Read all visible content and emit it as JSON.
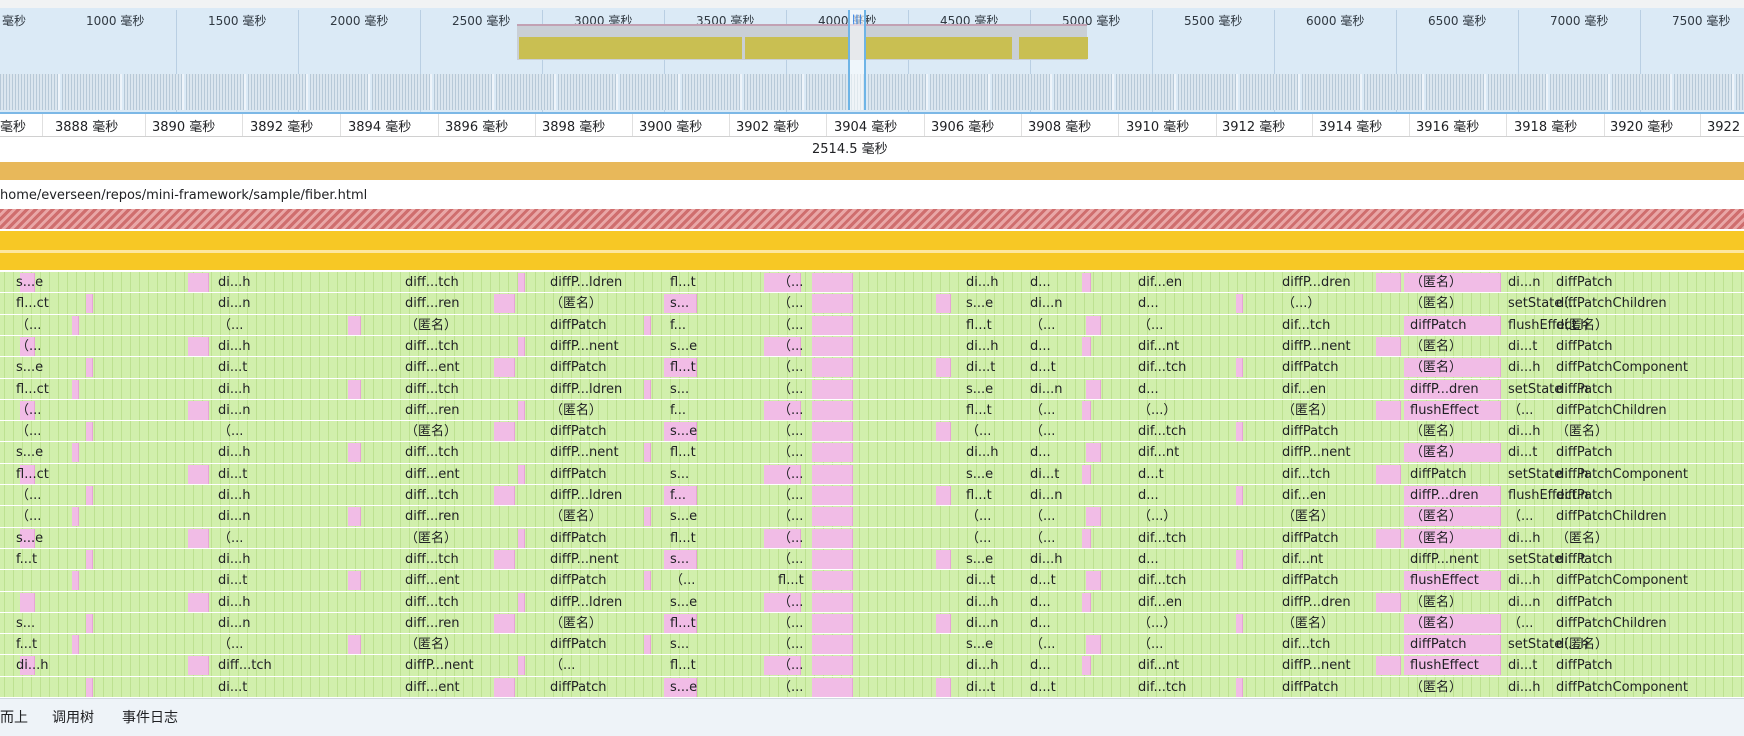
{
  "overview": {
    "ticks": [
      "毫秒",
      "1000 毫秒",
      "1500 毫秒",
      "2000 毫秒",
      "2500 毫秒",
      "3000 毫秒",
      "3500 毫秒",
      "4000 毫秒",
      "4500 毫秒",
      "5000 毫秒",
      "5500 毫秒",
      "6000 毫秒",
      "6500 毫秒",
      "7000 毫秒",
      "7500 毫秒"
    ]
  },
  "ruler": {
    "ticks": [
      "毫秒",
      "3888 毫秒",
      "3890 毫秒",
      "3892 毫秒",
      "3894 毫秒",
      "3896 毫秒",
      "3898 毫秒",
      "3900 毫秒",
      "3902 毫秒",
      "3904 毫秒",
      "3906 毫秒",
      "3908 毫秒",
      "3910 毫秒",
      "3912 毫秒",
      "3914 毫秒",
      "3916 毫秒",
      "3918 毫秒",
      "3920 毫秒",
      "3922 毫"
    ]
  },
  "selection": {
    "duration": "2514.5 毫秒"
  },
  "tracks": {
    "url": "home/everseen/repos/mini-framework/sample/fiber.html"
  },
  "flame": {
    "rows": [
      [
        "s...e",
        "di...h",
        "diff...tch",
        "diffP...ldren",
        "fl...t",
        "（...",
        "di...h",
        "d...",
        "dif...en",
        "diffP...dren",
        "（匿名）",
        "di...n",
        "diffPatch"
      ],
      [
        "fl...ct",
        "di...n",
        "diff...ren",
        "（匿名）",
        "s...",
        "（...",
        "s...e",
        "di...n",
        "d...",
        "（...）",
        "（匿名）",
        "setState",
        "（...",
        "diffPatchChildren"
      ],
      [
        "（...",
        "（...",
        "（匿名）",
        "diffPatch",
        "f...",
        "（...",
        "fl...t",
        "（...",
        "（...",
        "dif...tch",
        "diffPatch",
        "flushEffect",
        "di...h",
        "（匿名）"
      ],
      [
        "（...",
        "di...h",
        "diff...tch",
        "diffP...nent",
        "s...e",
        "（...",
        "di...h",
        "d...",
        "dif...nt",
        "diffP...nent",
        "（匿名）",
        "di...t",
        "diffPatch"
      ],
      [
        "s...e",
        "di...t",
        "diff...ent",
        "diffPatch",
        "fl...t",
        "（...",
        "di...t",
        "d...t",
        "dif...tch",
        "diffPatch",
        "（匿名）",
        "di...h",
        "diffPatchComponent"
      ],
      [
        "fl...ct",
        "di...h",
        "diff...tch",
        "diffP...ldren",
        "s...",
        "（...",
        "s...e",
        "di...n",
        "d...",
        "dif...en",
        "diffP...dren",
        "setState",
        "di...n",
        "diffPatch"
      ],
      [
        "（...",
        "di...n",
        "diff...ren",
        "（匿名）",
        "f...",
        "（...",
        "fl...t",
        "（...",
        "（...）",
        "（匿名）",
        "flushEffect",
        "（...",
        "diffPatchChildren"
      ],
      [
        "（...",
        "（...",
        "（匿名）",
        "diffPatch",
        "s...e",
        "（...",
        "（...",
        "（...",
        "dif...tch",
        "diffPatch",
        "（匿名）",
        "di...h",
        "（匿名）"
      ],
      [
        "s...e",
        "di...h",
        "diff...tch",
        "diffP...nent",
        "fl...t",
        "（...",
        "di...h",
        "d...",
        "dif...nt",
        "diffP...nent",
        "（匿名）",
        "di...t",
        "diffPatch"
      ],
      [
        "fl...ct",
        "di...t",
        "diff...ent",
        "diffPatch",
        "s...",
        "（...",
        "s...e",
        "di...t",
        "d...t",
        "dif...tch",
        "diffPatch",
        "setState",
        "di...h",
        "diffPatchComponent"
      ],
      [
        "（...",
        "di...h",
        "diff...tch",
        "diffP...ldren",
        "f...",
        "（...",
        "fl...t",
        "di...n",
        "d...",
        "dif...en",
        "diffP...dren",
        "flushEffect",
        "di...n",
        "diffPatch"
      ],
      [
        "（...",
        "di...n",
        "diff...ren",
        "（匿名）",
        "s...e",
        "（...",
        "（...",
        "（...",
        "（...）",
        "（匿名）",
        "（匿名）",
        "（...",
        "diffPatchChildren"
      ],
      [
        "s...e",
        "（...",
        "（匿名）",
        "diffPatch",
        "fl...t",
        "（...",
        "（...",
        "（...",
        "dif...tch",
        "diffPatch",
        "（匿名）",
        "di...h",
        "（匿名）"
      ],
      [
        "f...t",
        "di...h",
        "diff...tch",
        "diffP...nent",
        "s...",
        "（...",
        "s...e",
        "di...h",
        "d...",
        "dif...nt",
        "diffP...nent",
        "setState",
        "di...t",
        "diffPatch"
      ],
      [
        "di...t",
        "diff...ent",
        "diffPatch",
        "（...",
        "fl...t",
        "di...t",
        "d...t",
        "dif...tch",
        "diffPatch",
        "flushEffect",
        "di...h",
        "diffPatchComponent"
      ],
      [
        "di...h",
        "diff...tch",
        "diffP...ldren",
        "s...e",
        "（...",
        "di...h",
        "d...",
        "dif...en",
        "diffP...dren",
        "（匿名）",
        "di...n",
        "diffPatch"
      ],
      [
        "s...",
        "di...n",
        "diff...ren",
        "（匿名）",
        "fl...t",
        "（...",
        "di...n",
        "d...",
        "（...）",
        "（匿名）",
        "（匿名）",
        "（...",
        "diffPatchChildren"
      ],
      [
        "f...t",
        "（...",
        "（匿名）",
        "diffPatch",
        "s...",
        "（...",
        "s...e",
        "（...",
        "（...",
        "dif...tch",
        "diffPatch",
        "setState",
        "di...h",
        "（匿名）"
      ],
      [
        "di...h",
        "diff...tch",
        "diffP...nent",
        "（...",
        "fl...t",
        "（...",
        "di...h",
        "d...",
        "dif...nt",
        "diffP...nent",
        "flushEffect",
        "di...t",
        "diffPatch"
      ],
      [
        "di...t",
        "diff...ent",
        "diffPatch",
        "s...e",
        "（...",
        "di...t",
        "d...t",
        "dif...tch",
        "diffPatch",
        "（匿名）",
        "di...h",
        "diffPatchComponent"
      ]
    ]
  },
  "bottom_tabs": [
    "而上",
    "调用树",
    "事件日志"
  ]
}
